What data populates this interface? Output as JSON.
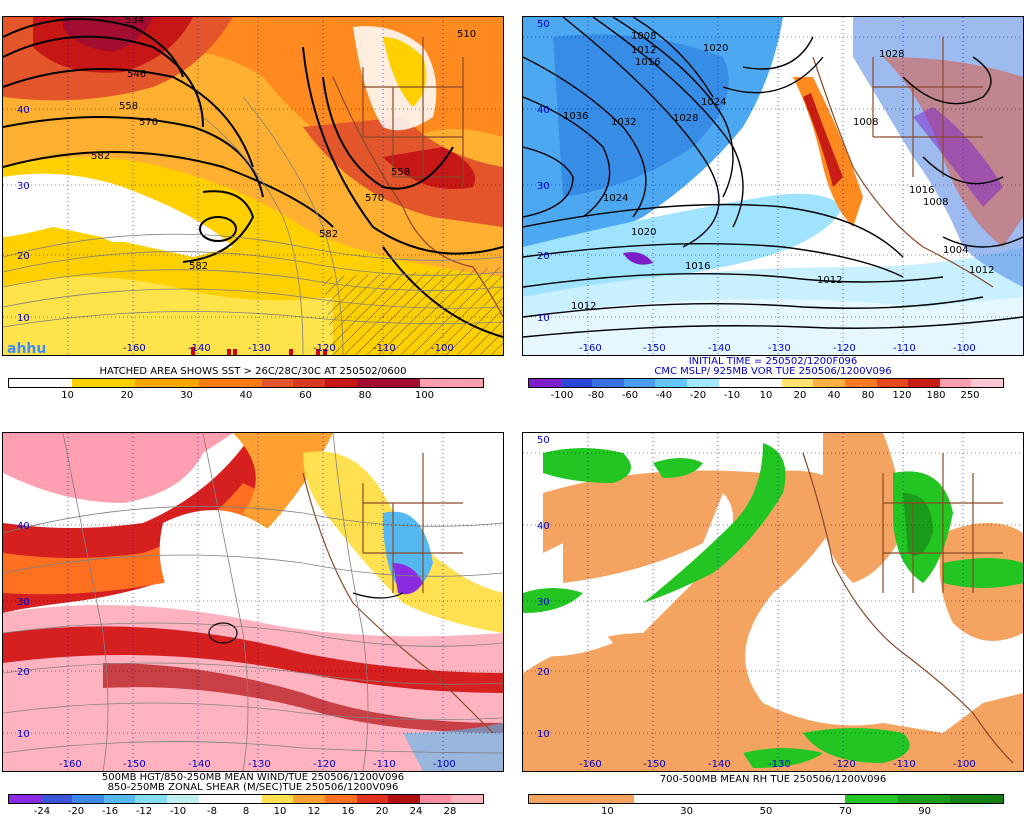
{
  "panels": [
    {
      "id": "sst",
      "caption_lines": [
        "HATCHED AREA SHOWS SST > 26C/28C/30C AT 250502/0600"
      ],
      "colorbar": {
        "colors": [
          "#ffffff",
          "#ffffff",
          "#ffd000",
          "#ffd000",
          "#ffa500",
          "#ffa500",
          "#ff7a10",
          "#ff7a10",
          "#e3552a",
          "#d73a1e",
          "#c61616",
          "#a30d2f",
          "#a30d2f",
          "#ff9fb0",
          "#ff9fb0"
        ],
        "labels": [
          "10",
          "20",
          "30",
          "40",
          "60",
          "80",
          "100"
        ]
      },
      "lon_labels": [
        "-160",
        "-140",
        "-130",
        "-120",
        "-110",
        "-100"
      ],
      "lat_labels": [
        "40",
        "30",
        "20",
        "10"
      ],
      "contour_labels": [
        "534",
        "546",
        "558",
        "570",
        "582",
        "582",
        "570",
        "558",
        "582",
        "510"
      ],
      "logo": "ahhu"
    },
    {
      "id": "mslp",
      "caption_lines": [
        "INITIAL TIME = 250502/1200F096",
        "CMC MSLP/ 925MB VOR TUE 250506/1200V096"
      ],
      "colorbar": {
        "colors": [
          "#7d1eca",
          "#2a47d8",
          "#3c6fe0",
          "#4c9cf2",
          "#65c6ff",
          "#a3e7ff",
          "#ffffff",
          "#ffffff",
          "#ffe270",
          "#ffb040",
          "#ff7a20",
          "#e8471b",
          "#c61e14",
          "#ff9fb0",
          "#ffc7d4"
        ],
        "labels": [
          "-100",
          "-80",
          "-60",
          "-40",
          "-20",
          "-10",
          "10",
          "20",
          "40",
          "80",
          "120",
          "180",
          "250"
        ]
      },
      "lon_labels": [
        "-160",
        "-150",
        "-140",
        "-130",
        "-120",
        "-110",
        "-100"
      ],
      "lat_labels": [
        "50",
        "40",
        "30",
        "20",
        "10"
      ],
      "contour_labels": [
        "1008",
        "1012",
        "1016",
        "1020",
        "1024",
        "1028",
        "1032",
        "1036",
        "1020",
        "1024",
        "1016",
        "1012",
        "1012",
        "1008",
        "1028",
        "1016",
        "1008",
        "1004",
        "1012"
      ]
    },
    {
      "id": "shear",
      "caption_lines": [
        "500MB HGT/850-250MB MEAN WIND/TUE 250506/1200V096",
        "850-250MB ZONAL SHEAR (M/SEC)TUE 250506/1200V096"
      ],
      "colorbar": {
        "colors": [
          "#8a2be2",
          "#3a55d8",
          "#3f88e8",
          "#55b8f0",
          "#85dcf0",
          "#c0f0f0",
          "#ffffff",
          "#ffffff",
          "#ffe050",
          "#ffa030",
          "#ff7020",
          "#e03020",
          "#b01010",
          "#ff8fa0",
          "#ffb3c0"
        ],
        "labels": [
          "-24",
          "-20",
          "-16",
          "-12",
          "-10",
          "-8",
          "8",
          "10",
          "12",
          "16",
          "20",
          "24",
          "28"
        ]
      },
      "lon_labels": [
        "-160",
        "-150",
        "-140",
        "-130",
        "-120",
        "-110",
        "-100"
      ],
      "lat_labels": [
        "40",
        "30",
        "20",
        "10"
      ]
    },
    {
      "id": "rh",
      "caption_lines": [
        "700-500MB MEAN RH TUE 250506/1200V096"
      ],
      "colorbar": {
        "colors": [
          "#f4a460",
          "#f4a460",
          "#ffffff",
          "#ffffff",
          "#ffffff",
          "#ffffff",
          "#22c522",
          "#1a9c1a",
          "#138013"
        ],
        "labels": [
          "10",
          "30",
          "50",
          "70",
          "90"
        ]
      },
      "lon_labels": [
        "-160",
        "-150",
        "-140",
        "-130",
        "-120",
        "-110",
        "-100"
      ],
      "lat_labels": [
        "50",
        "40",
        "30",
        "20",
        "10"
      ]
    }
  ]
}
